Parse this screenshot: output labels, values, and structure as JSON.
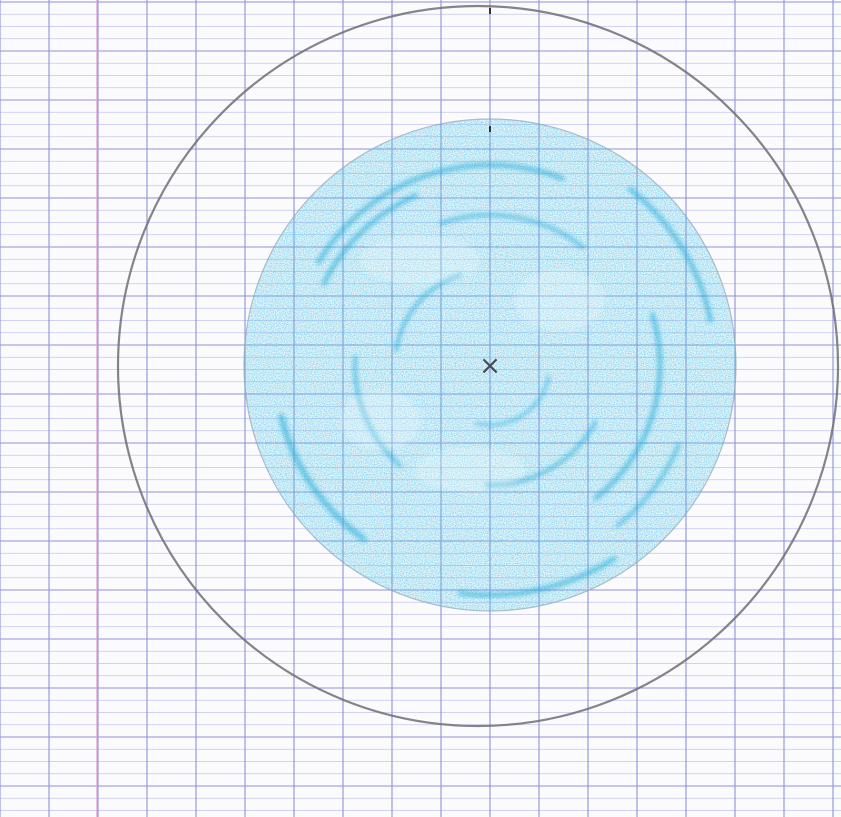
{
  "paper": {
    "kind": "french-ruled-graph-paper",
    "background_color": "#fbfbfd",
    "major_line_color": "#8f92d8",
    "minor_line_color": "#c3c5ec",
    "margin_line_color": "#e79ac8"
  },
  "drawing": {
    "outer_circle_stroke_color": "#6e6e76",
    "inner_disc_fill_color": "#52c4e6",
    "inner_disc_texture_color": "#1aa8d6",
    "center_mark_glyph": "×",
    "center_mark_color": "#4a4a54",
    "medium": "colored-pencil"
  }
}
